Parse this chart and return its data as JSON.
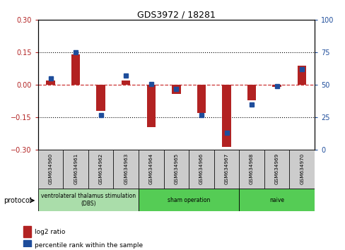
{
  "title": "GDS3972 / 18281",
  "samples": [
    "GSM634960",
    "GSM634961",
    "GSM634962",
    "GSM634963",
    "GSM634964",
    "GSM634965",
    "GSM634966",
    "GSM634967",
    "GSM634968",
    "GSM634969",
    "GSM634970"
  ],
  "log2_ratio": [
    0.02,
    0.14,
    -0.12,
    0.02,
    -0.195,
    -0.04,
    -0.13,
    -0.285,
    -0.07,
    -0.01,
    0.09
  ],
  "percentile_rank": [
    55,
    75,
    27,
    57,
    51,
    47,
    27,
    13,
    35,
    49,
    62
  ],
  "ylim_left": [
    -0.3,
    0.3
  ],
  "ylim_right": [
    0,
    100
  ],
  "yticks_left": [
    -0.3,
    -0.15,
    0,
    0.15,
    0.3
  ],
  "yticks_right": [
    0,
    25,
    50,
    75,
    100
  ],
  "hline_y": [
    0.15,
    -0.15
  ],
  "bar_color_red": "#B22222",
  "bar_color_blue": "#1E4D9B",
  "dashed_line_color": "#CC3333",
  "protocol_groups": [
    {
      "label": "ventrolateral thalamus stimulation\n(DBS)",
      "start": 0,
      "end": 3,
      "color": "#AADDAA"
    },
    {
      "label": "sham operation",
      "start": 4,
      "end": 7,
      "color": "#55CC55"
    },
    {
      "label": "naive",
      "start": 8,
      "end": 10,
      "color": "#55CC55"
    }
  ],
  "legend_items": [
    {
      "label": "log2 ratio",
      "color": "#B22222"
    },
    {
      "label": "percentile rank within the sample",
      "color": "#1E4D9B"
    }
  ],
  "bar_width": 0.35
}
